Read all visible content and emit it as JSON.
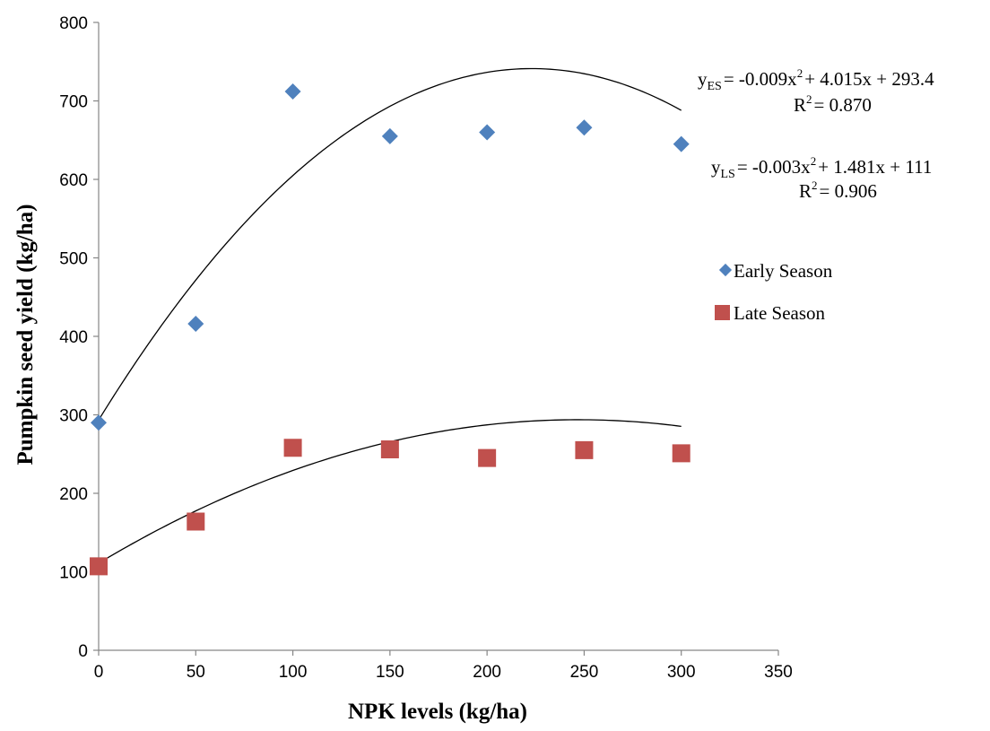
{
  "chart_data": {
    "type": "scatter",
    "xlabel": "NPK levels (kg/ha)",
    "ylabel": "Pumpkin seed yield (kg/ha)",
    "xlim": [
      0,
      350
    ],
    "ylim": [
      0,
      800
    ],
    "xticks": [
      0,
      50,
      100,
      150,
      200,
      250,
      300,
      350
    ],
    "yticks": [
      0,
      100,
      200,
      300,
      400,
      500,
      600,
      700,
      800
    ],
    "grid": false,
    "legend_position": "right",
    "series": [
      {
        "name": "Early Season",
        "marker": "diamond",
        "color": "#4F81BD",
        "x": [
          0,
          50,
          100,
          150,
          200,
          250,
          300
        ],
        "y": [
          290,
          416,
          712,
          655,
          660,
          666,
          645
        ],
        "trendline": {
          "a": -0.009,
          "b": 4.015,
          "c": 293.4,
          "from": 0,
          "to": 300
        }
      },
      {
        "name": "Late Season",
        "marker": "square",
        "color": "#C0504D",
        "x": [
          0,
          50,
          100,
          150,
          200,
          250,
          300
        ],
        "y": [
          107,
          164,
          258,
          256,
          245,
          255,
          251
        ],
        "trendline": {
          "a": -0.003,
          "b": 1.481,
          "c": 111,
          "from": 0,
          "to": 300
        }
      }
    ],
    "annotations": {
      "early": {
        "y": "y",
        "sub": "ES",
        "eq1": "= -0.009x",
        "sup": "2",
        "eq2": "+ 4.015x + 293.4",
        "r2a": "R",
        "r2sup": "2",
        "r2b": "= 0.870"
      },
      "late": {
        "y": "y",
        "sub": "LS",
        "eq1": "= -0.003x",
        "sup": "2",
        "eq2": "+ 1.481x + 111",
        "r2a": "R",
        "r2sup": "2",
        "r2b": "= 0.906"
      }
    }
  }
}
